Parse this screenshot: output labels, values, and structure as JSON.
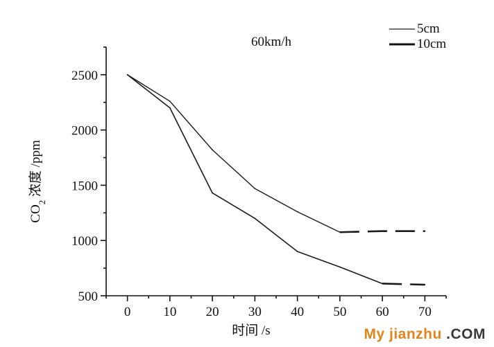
{
  "chart_data": {
    "type": "line",
    "title": "60km/h",
    "xlabel": "时间 /s",
    "ylabel_parts": {
      "prefix": "CO",
      "subscript": "2",
      "suffix": " 浓度 /ppm"
    },
    "x": [
      0,
      10,
      20,
      30,
      40,
      50,
      60,
      70
    ],
    "x_ticks": [
      "0",
      "10",
      "20",
      "30",
      "40",
      "50",
      "60",
      "70"
    ],
    "y_ticks": [
      "500",
      "1000",
      "1500",
      "2000",
      "2500"
    ],
    "xlim": [
      -5,
      75
    ],
    "ylim": [
      500,
      2750
    ],
    "series": [
      {
        "name": "5cm",
        "values": [
          2500,
          2260,
          1820,
          1470,
          1260,
          1075,
          1085,
          1085
        ],
        "dashed_from_index": 5
      },
      {
        "name": "10cm",
        "values": [
          2500,
          2200,
          1430,
          1200,
          900,
          760,
          610,
          600
        ],
        "dashed_from_index": 6
      }
    ],
    "legend_position": "top-right",
    "grid": false
  },
  "watermark": {
    "my": "My",
    "jianzhu": " jianzhu",
    "dot": " .",
    "com": "COM"
  }
}
